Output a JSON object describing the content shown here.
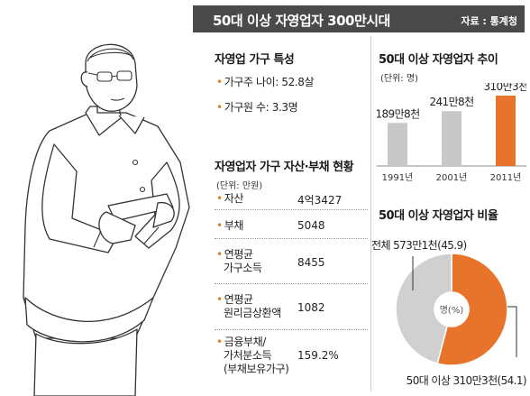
{
  "header": {
    "title": "50대 이상 자영업자 300만시대",
    "source": "자료 : 통계청"
  },
  "household_traits": {
    "heading": "자영업 가구 특성",
    "items": [
      {
        "label": "가구주 나이: 52.8살"
      },
      {
        "label": "가구원 수: 3.3명"
      }
    ]
  },
  "assets": {
    "heading": "자영업자 가구 자산·부채 현황",
    "unit": "(단위: 만원)",
    "rows": [
      {
        "label": [
          "자산"
        ],
        "value": "4억3427"
      },
      {
        "label": [
          "부채"
        ],
        "value": "5048"
      },
      {
        "label": [
          "연평균",
          "가구소득"
        ],
        "value": "8455"
      },
      {
        "label": [
          "연평균",
          "원리금상환액"
        ],
        "value": "1082"
      },
      {
        "label": [
          "금융부채/",
          "가처분소득",
          "(부채보유가구)"
        ],
        "value": "159.2%"
      }
    ]
  },
  "colors": {
    "accent": "#e8732a",
    "gray_bar": "#c8c8c8",
    "gray_slice": "#d0d0d0",
    "title_bg": "#4a4a4a"
  },
  "chart_data": [
    {
      "type": "bar",
      "title": "50대 이상 자영업자 추이",
      "unit": "(단위: 명)",
      "categories": [
        "1991년",
        "2001년",
        "2011년"
      ],
      "values": [
        1898000,
        2418000,
        3103000
      ],
      "data_labels": [
        "189만8천",
        "241만8천",
        "310만3천"
      ],
      "highlight_index": 2
    },
    {
      "type": "pie",
      "title": "50대 이상 자영업자 비율",
      "center_label": "명(%)",
      "slices": [
        {
          "label": "전체 573만1천(45.9)",
          "value": 45.9
        },
        {
          "label": "50대 이상  310만3천(54.1)",
          "value": 54.1
        }
      ]
    }
  ]
}
